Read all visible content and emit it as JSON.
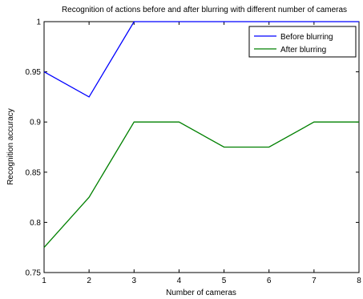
{
  "chart_data": {
    "type": "line",
    "title": "Recognition of actions before and after blurring with different number of cameras",
    "xlabel": "Number of cameras",
    "ylabel": "Recognition accuracy",
    "xlim": [
      1,
      8
    ],
    "ylim": [
      0.75,
      1
    ],
    "xticks": [
      1,
      2,
      3,
      4,
      5,
      6,
      7,
      8
    ],
    "yticks": [
      0.75,
      0.8,
      0.85,
      0.9,
      0.95,
      1
    ],
    "ytick_labels": [
      "0.75",
      "0.8",
      "0.85",
      "0.9",
      "0.95",
      "1"
    ],
    "grid": false,
    "legend_position": "top-right",
    "x": [
      1,
      2,
      3,
      4,
      5,
      6,
      7,
      8
    ],
    "series": [
      {
        "name": "Before blurring",
        "color": "#0000ff",
        "values": [
          0.95,
          0.925,
          1,
          1,
          1,
          1,
          1,
          1
        ]
      },
      {
        "name": "After blurring",
        "color": "#008000",
        "values": [
          0.775,
          0.825,
          0.9,
          0.9,
          0.875,
          0.875,
          0.9,
          0.9
        ]
      }
    ]
  }
}
